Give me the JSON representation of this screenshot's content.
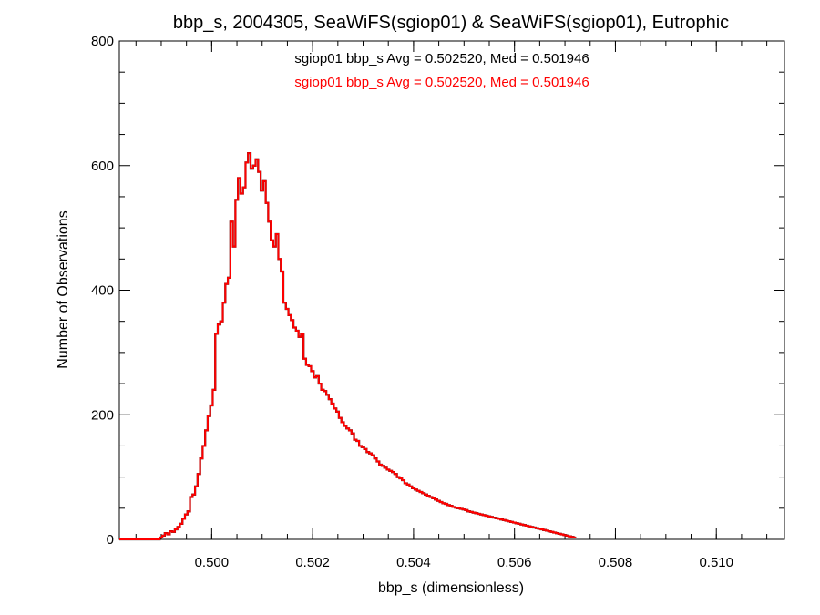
{
  "chart_data": {
    "type": "histogram",
    "title": "bbp_s, 2004305, SeaWiFS(sgiop01) & SeaWiFS(sgiop01), Eutrophic",
    "xlabel": "bbp_s (dimensionless)",
    "ylabel": "Number of Observations",
    "xlim": [
      0.49817,
      0.51135
    ],
    "ylim": [
      0,
      800
    ],
    "x_ticks": [
      0.5,
      0.502,
      0.504,
      0.506,
      0.508,
      0.51
    ],
    "x_tick_labels": [
      "0.500",
      "0.502",
      "0.504",
      "0.506",
      "0.508",
      "0.510"
    ],
    "y_ticks": [
      0,
      200,
      400,
      600,
      800
    ],
    "y_tick_labels": [
      "0",
      "200",
      "400",
      "600",
      "800"
    ],
    "grid": false,
    "annotations": [
      {
        "text": "sgiop01 bbp_s Avg = 0.502520, Med = 0.501946",
        "color": "#000000"
      },
      {
        "text": "sgiop01 bbp_s Avg = 0.502520, Med = 0.501946",
        "color": "#ff0000"
      }
    ],
    "series": [
      {
        "color": "#000000",
        "style": "step"
      },
      {
        "color": "#ff0000",
        "style": "step"
      }
    ],
    "x_start": 0.49817,
    "bin_width": 5e-05,
    "values": [
      0,
      0,
      0,
      0,
      0,
      0,
      0,
      0,
      0,
      0,
      0,
      0,
      0,
      0,
      0,
      0,
      3,
      6,
      10,
      8,
      13,
      12,
      16,
      20,
      25,
      33,
      40,
      45,
      68,
      72,
      85,
      105,
      130,
      150,
      175,
      198,
      215,
      240,
      330,
      345,
      350,
      380,
      410,
      420,
      510,
      470,
      545,
      580,
      555,
      565,
      605,
      620,
      595,
      600,
      610,
      590,
      560,
      575,
      540,
      510,
      480,
      470,
      490,
      450,
      430,
      380,
      370,
      360,
      352,
      340,
      335,
      325,
      330,
      290,
      280,
      278,
      270,
      260,
      262,
      250,
      240,
      238,
      232,
      225,
      218,
      210,
      205,
      195,
      188,
      182,
      178,
      175,
      170,
      160,
      158,
      150,
      148,
      145,
      140,
      138,
      135,
      130,
      125,
      120,
      118,
      115,
      112,
      110,
      108,
      105,
      100,
      98,
      95,
      90,
      88,
      85,
      82,
      80,
      78,
      76,
      74,
      72,
      70,
      68,
      66,
      64,
      62,
      60,
      58,
      57,
      55,
      54,
      52,
      51,
      50,
      49,
      48,
      47,
      45,
      44,
      43,
      42,
      41,
      40,
      39,
      38,
      37,
      36,
      35,
      34,
      33,
      32,
      31,
      30,
      29,
      28,
      27,
      26,
      25,
      24,
      23,
      22,
      21,
      20,
      19,
      18,
      17,
      16,
      15,
      14,
      13,
      12,
      11,
      10,
      9,
      8,
      7,
      6,
      5,
      4,
      3
    ]
  }
}
